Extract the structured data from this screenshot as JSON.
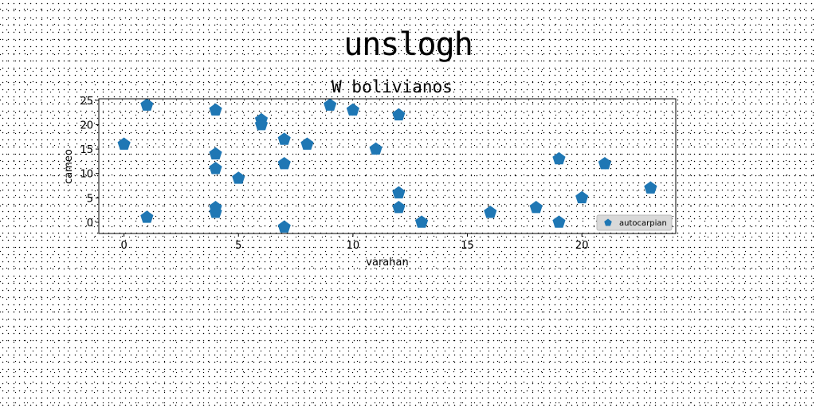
{
  "figure": {
    "suptitle": "unslogh"
  },
  "chart_data": {
    "type": "scatter",
    "title": "W bolivianos",
    "xlabel": "varahan",
    "ylabel": "cameo",
    "xlim": [
      -1.1,
      24.1
    ],
    "ylim": [
      -2.3,
      25.3
    ],
    "xticks": [
      0,
      5,
      10,
      15,
      20
    ],
    "yticks": [
      0,
      5,
      10,
      15,
      20,
      25
    ],
    "grid": false,
    "legend_position": "lower-right",
    "marker": "pentagon",
    "series": [
      {
        "name": "autocarpian",
        "color": "#1f77b4",
        "points": [
          [
            0,
            16
          ],
          [
            1,
            24
          ],
          [
            1,
            1
          ],
          [
            4,
            23
          ],
          [
            4,
            14
          ],
          [
            4,
            11
          ],
          [
            4,
            3
          ],
          [
            4,
            2
          ],
          [
            5,
            9
          ],
          [
            6,
            21
          ],
          [
            6,
            20
          ],
          [
            7,
            17
          ],
          [
            7,
            12
          ],
          [
            7,
            -1
          ],
          [
            8,
            16
          ],
          [
            9,
            24
          ],
          [
            10,
            23
          ],
          [
            11,
            15
          ],
          [
            12,
            22
          ],
          [
            12,
            6
          ],
          [
            12,
            3
          ],
          [
            13,
            0
          ],
          [
            16,
            2
          ],
          [
            18,
            3
          ],
          [
            19,
            13
          ],
          [
            19,
            0
          ],
          [
            20,
            5
          ],
          [
            21,
            12
          ],
          [
            23,
            7
          ]
        ]
      }
    ]
  }
}
